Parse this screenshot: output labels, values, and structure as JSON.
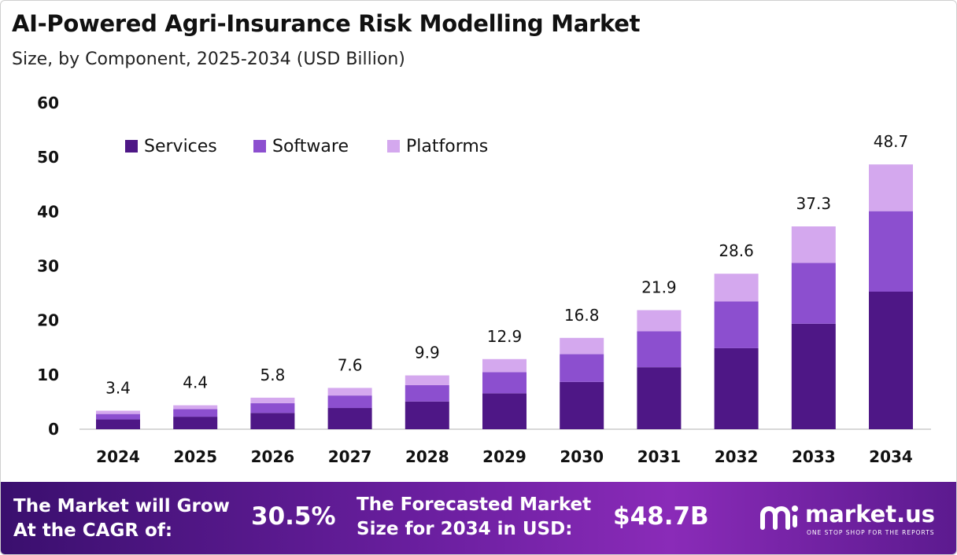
{
  "header": {
    "title": "AI-Powered Agri-Insurance Risk Modelling Market",
    "subtitle": "Size, by Component, 2025-2034 (USD Billion)"
  },
  "chart_data": {
    "type": "bar",
    "stacked": true,
    "categories": [
      "2024",
      "2025",
      "2026",
      "2027",
      "2028",
      "2029",
      "2030",
      "2031",
      "2032",
      "2033",
      "2034"
    ],
    "series": [
      {
        "name": "Services",
        "color": "#4e1786",
        "values": [
          1.8,
          2.3,
          3.0,
          3.9,
          5.1,
          6.6,
          8.7,
          11.4,
          14.9,
          19.4,
          25.3
        ]
      },
      {
        "name": "Software",
        "color": "#8c4fcf",
        "values": [
          1.0,
          1.4,
          1.8,
          2.3,
          3.0,
          3.9,
          5.1,
          6.6,
          8.6,
          11.2,
          14.8
        ]
      },
      {
        "name": "Platforms",
        "color": "#d4a8ee",
        "values": [
          0.6,
          0.7,
          1.0,
          1.4,
          1.8,
          2.4,
          3.0,
          3.9,
          5.1,
          6.7,
          8.6
        ]
      }
    ],
    "totals": [
      "3.4",
      "4.4",
      "5.8",
      "7.6",
      "9.9",
      "12.9",
      "16.8",
      "21.9",
      "28.6",
      "37.3",
      "48.7"
    ],
    "y_ticks": [
      "0",
      "10",
      "20",
      "30",
      "40",
      "50",
      "60"
    ],
    "ylim": [
      0,
      60
    ],
    "legend_position": "top-left",
    "grid": false
  },
  "footer": {
    "cagr_label_line1": "The Market will Grow",
    "cagr_label_line2": "At the CAGR of:",
    "cagr_value": "30.5%",
    "forecast_label_line1": "The Forecasted Market",
    "forecast_label_line2": "Size for 2034 in USD:",
    "forecast_value": "$48.7B",
    "brand_name": "market.us",
    "brand_tagline": "ONE STOP SHOP FOR THE REPORTS",
    "brand_icon": "market-us-logo-icon"
  }
}
